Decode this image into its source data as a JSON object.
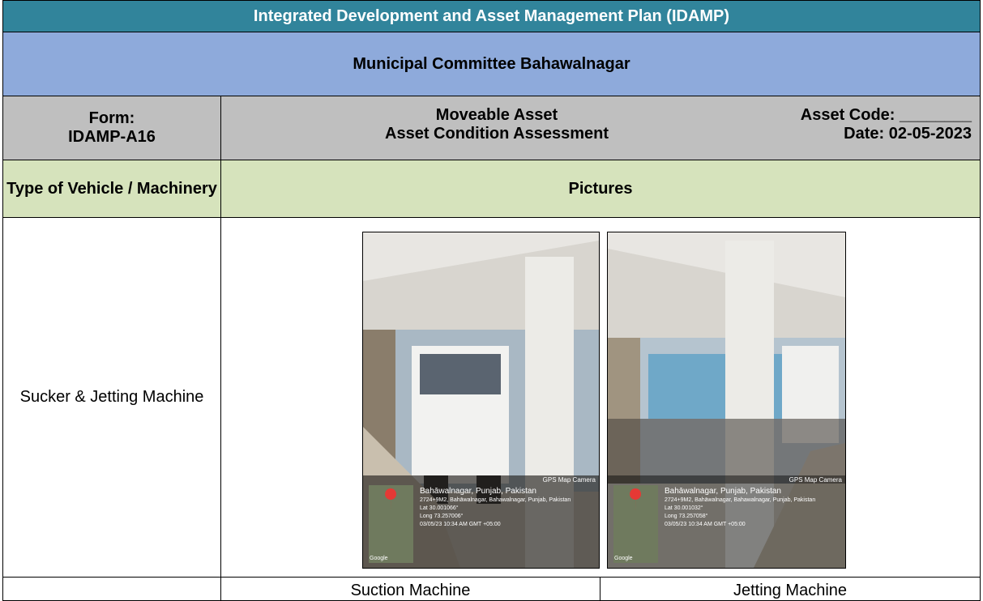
{
  "header": {
    "title": "Integrated Development and Asset Management Plan (IDAMP)",
    "subtitle": "Municipal Committee Bahawalnagar"
  },
  "form": {
    "form_label": "Form:",
    "form_code": "IDAMP-A16",
    "asset_type": "Moveable Asset",
    "assessment": "Asset Condition Assessment",
    "asset_code": "Asset Code: ________",
    "date": "Date: 02-05-2023"
  },
  "table": {
    "headers": [
      "Type of Vehicle / Machinery",
      "Pictures"
    ],
    "rows": [
      {
        "type": "Sucker & Jetting Machine",
        "pictures": [
          {
            "caption": "Suction Machine",
            "overlay": {
              "app": "GPS Map Camera",
              "place": "Bahāwalnagar, Punjab, Pakistan",
              "address": "2724+9M2, Bahāwalnagar, Bahawalnagar, Punjab, Pakistan",
              "lat": "Lat 30.001066°",
              "long": "Long 73.257006°",
              "time": "03/05/23 10:34 AM GMT +05:00",
              "map": "Google"
            }
          },
          {
            "caption": "Jetting Machine",
            "overlay": {
              "app": "GPS Map Camera",
              "place": "Bahāwalnagar, Punjab, Pakistan",
              "address": "2724+9M2, Bahāwalnagar, Bahawalnagar, Punjab, Pakistan",
              "lat": "Lat 30.001032°",
              "long": "Long 73.257058°",
              "time": "03/05/23 10:34 AM GMT +05:00",
              "map": "Google"
            }
          }
        ]
      }
    ]
  }
}
